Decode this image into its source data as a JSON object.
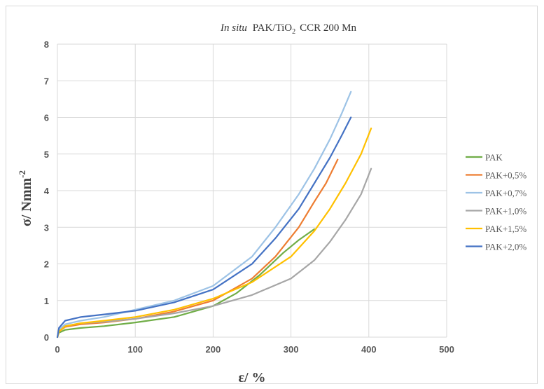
{
  "chart_data": {
    "type": "line",
    "title_italic": "In situ",
    "title_main": "PAK/TiO",
    "title_sub": "2",
    "title_rest": "CCR 200 Mn",
    "xlabel": "ε/ %",
    "ylabel_main": "σ/ Nmm",
    "ylabel_sup": "-2",
    "xlim": [
      0,
      500
    ],
    "ylim": [
      0,
      8
    ],
    "xticks": [
      "0",
      "100",
      "200",
      "300",
      "400",
      "500"
    ],
    "yticks": [
      "0",
      "1",
      "2",
      "3",
      "4",
      "5",
      "6",
      "7",
      "8"
    ],
    "grid": true,
    "legend_position": "right",
    "series": [
      {
        "name": "PAK",
        "color": "#70ad47",
        "x": [
          0,
          2,
          10,
          30,
          60,
          100,
          150,
          200,
          230,
          260,
          290,
          310,
          330
        ],
        "y": [
          0,
          0.12,
          0.2,
          0.25,
          0.3,
          0.4,
          0.55,
          0.85,
          1.2,
          1.7,
          2.3,
          2.65,
          2.95
        ]
      },
      {
        "name": "PAK+0,5%",
        "color": "#ed7d31",
        "x": [
          0,
          2,
          10,
          30,
          60,
          100,
          150,
          200,
          250,
          280,
          310,
          330,
          345,
          360
        ],
        "y": [
          0,
          0.15,
          0.28,
          0.35,
          0.4,
          0.5,
          0.7,
          1.0,
          1.6,
          2.2,
          3.0,
          3.7,
          4.2,
          4.85
        ]
      },
      {
        "name": "PAK+0,7%",
        "color": "#9dc3e6",
        "x": [
          0,
          2,
          10,
          30,
          60,
          100,
          150,
          200,
          250,
          280,
          310,
          330,
          350,
          365,
          377
        ],
        "y": [
          0,
          0.2,
          0.35,
          0.45,
          0.55,
          0.75,
          1.0,
          1.4,
          2.2,
          3.0,
          3.9,
          4.6,
          5.4,
          6.1,
          6.7
        ]
      },
      {
        "name": "PAK+1,0%",
        "color": "#a6a6a6",
        "x": [
          0,
          2,
          10,
          30,
          60,
          100,
          150,
          200,
          250,
          300,
          330,
          350,
          370,
          390,
          403
        ],
        "y": [
          0,
          0.15,
          0.3,
          0.38,
          0.42,
          0.5,
          0.65,
          0.85,
          1.15,
          1.6,
          2.1,
          2.6,
          3.2,
          3.9,
          4.6
        ]
      },
      {
        "name": "PAK+1,5%",
        "color": "#ffc000",
        "x": [
          0,
          2,
          10,
          30,
          60,
          100,
          150,
          200,
          250,
          300,
          330,
          350,
          370,
          390,
          403
        ],
        "y": [
          0,
          0.15,
          0.3,
          0.38,
          0.45,
          0.55,
          0.75,
          1.05,
          1.5,
          2.2,
          2.9,
          3.5,
          4.2,
          5.0,
          5.7
        ]
      },
      {
        "name": "PAK+2,0%",
        "color": "#4472c4",
        "x": [
          0,
          2,
          10,
          30,
          60,
          100,
          150,
          200,
          250,
          280,
          310,
          330,
          350,
          365,
          377
        ],
        "y": [
          0,
          0.25,
          0.45,
          0.55,
          0.62,
          0.72,
          0.95,
          1.3,
          2.0,
          2.7,
          3.5,
          4.2,
          4.9,
          5.5,
          6.0
        ]
      }
    ]
  }
}
